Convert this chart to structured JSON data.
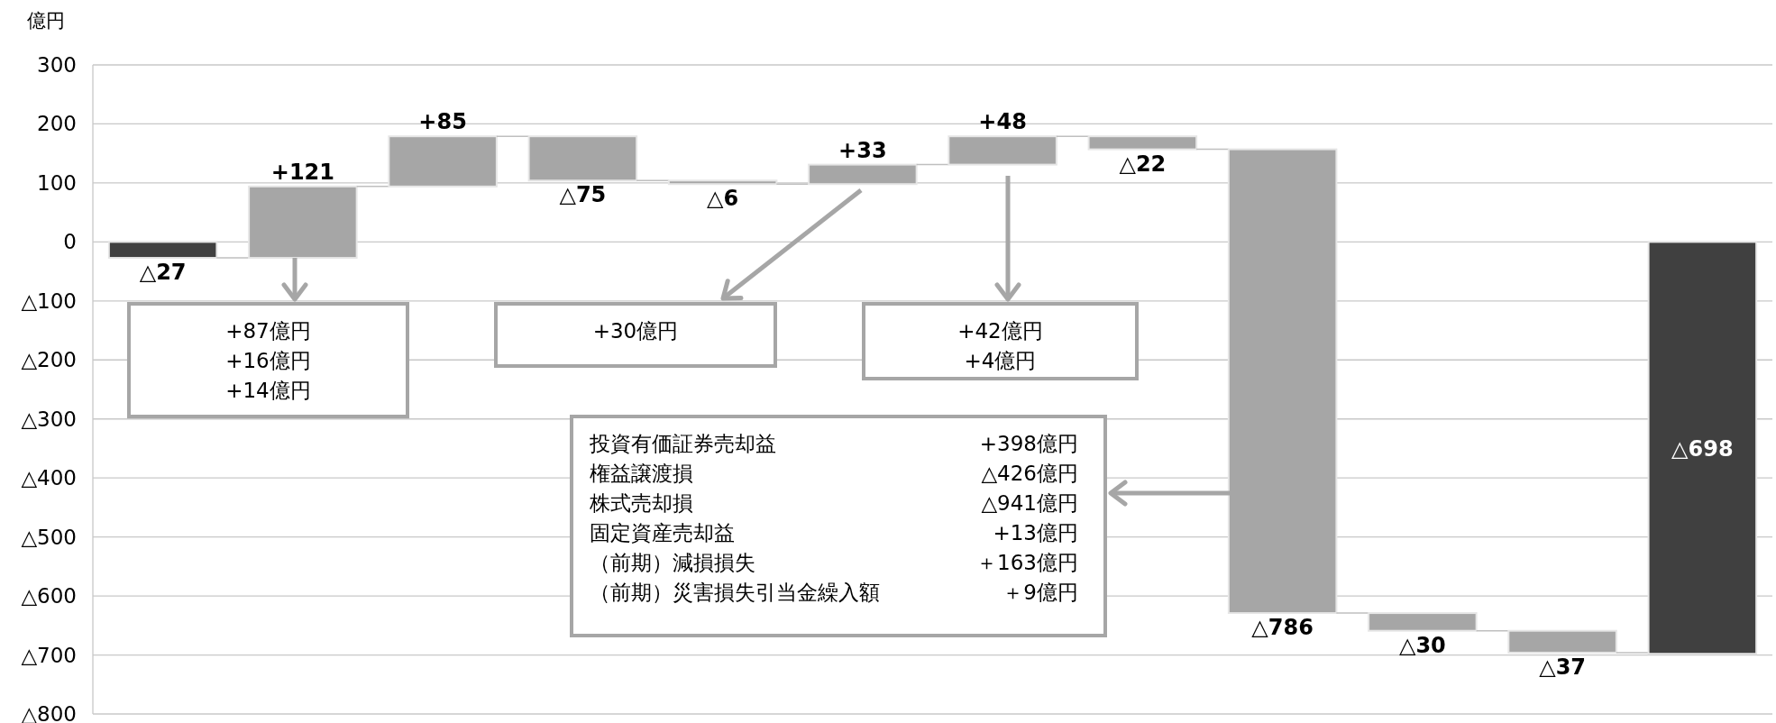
{
  "chart_data": {
    "type": "bar",
    "ylabel": "億円",
    "categories": [
      null,
      null,
      null,
      null,
      null,
      null,
      null,
      null,
      null,
      null,
      null,
      null
    ],
    "base": [
      0,
      -27,
      94,
      179,
      104,
      98,
      131,
      179,
      157,
      -629,
      -659,
      0
    ],
    "values": [
      -27,
      121,
      85,
      -75,
      -6,
      33,
      48,
      -22,
      -786,
      -30,
      -37,
      -698
    ],
    "colors": [
      "#404040",
      "#a6a6a6",
      "#a6a6a6",
      "#a6a6a6",
      "#a6a6a6",
      "#a6a6a6",
      "#a6a6a6",
      "#a6a6a6",
      "#a6a6a6",
      "#a6a6a6",
      "#a6a6a6",
      "#404040"
    ],
    "value_labels": [
      "△27",
      "+121",
      "+85",
      "△75",
      "△6",
      "+33",
      "+48",
      "△22",
      "△786",
      "△30",
      "△37",
      "△698"
    ],
    "ylim": [
      -800,
      300
    ],
    "yticks": [
      300,
      200,
      100,
      0,
      {
        "value": -100,
        "label": "△100"
      },
      {
        "value": -200,
        "label": "△200"
      },
      {
        "value": -300,
        "label": "△300"
      },
      {
        "value": -400,
        "label": "△400"
      },
      {
        "value": -500,
        "label": "△500"
      },
      {
        "value": -600,
        "label": "△600"
      },
      {
        "value": -700,
        "label": "△700"
      },
      {
        "value": -800,
        "label": "△800"
      }
    ],
    "grid": "y",
    "annotations": [
      "+87億円",
      "+16億円",
      "+14億円",
      "+30億円",
      "+42億円",
      "+4億円",
      "投資有価証券売却益",
      "+398億円",
      "権益譲渡損",
      "△426億円",
      "株式売却損",
      "△941億円",
      "固定資産売却益",
      "+13億円",
      "（前期）減損損失",
      "＋163億円",
      "（前期）災害損失引当金繰入額",
      "＋9億円"
    ]
  }
}
